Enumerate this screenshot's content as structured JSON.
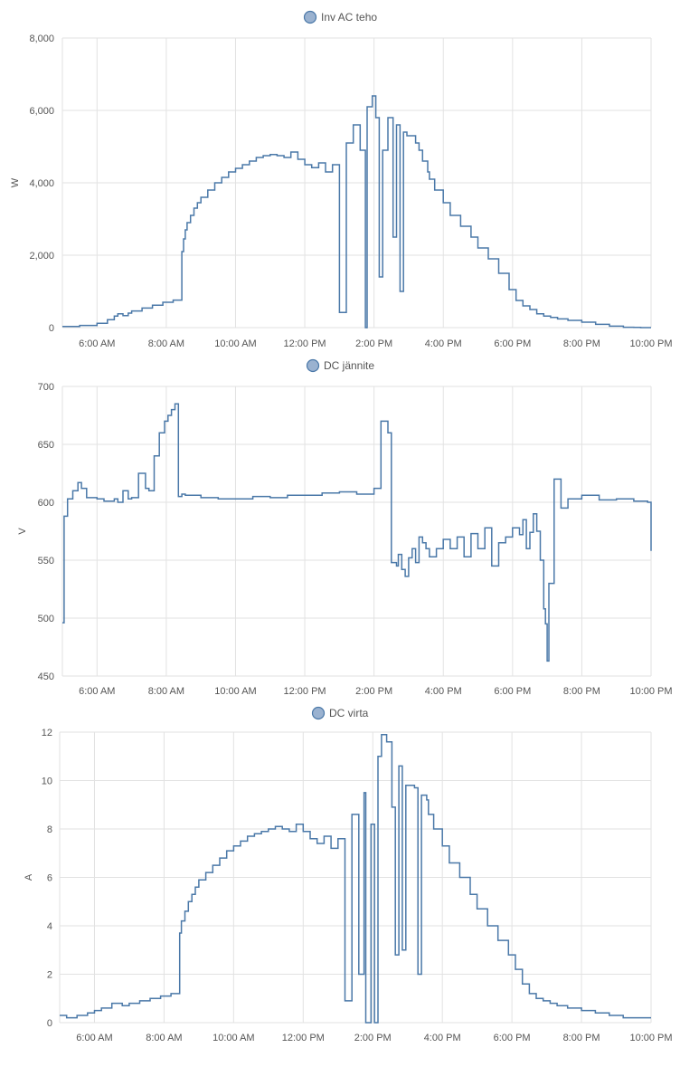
{
  "colors": {
    "series": "#4a78a8",
    "legend_fill": "#9ab2d0",
    "grid": "#e2e2e2",
    "text": "#555555"
  },
  "x_ticks": [
    "6:00 AM",
    "8:00 AM",
    "10:00 AM",
    "12:00 PM",
    "2:00 PM",
    "4:00 PM",
    "6:00 PM",
    "8:00 PM",
    "10:00 PM"
  ],
  "chart_data": [
    {
      "type": "line",
      "step": true,
      "legend": "Inv AC teho",
      "ylabel": "W",
      "xlim": [
        5.0,
        22.0
      ],
      "ylim": [
        0,
        8000
      ],
      "y_ticks": [
        "0",
        "2,000",
        "4,000",
        "6,000",
        "8,000"
      ],
      "y_tick_values": [
        0,
        2000,
        4000,
        6000,
        8000
      ],
      "grid": true,
      "series": [
        {
          "x": [
            5.0,
            5.5,
            6.0,
            6.3,
            6.5,
            6.6,
            6.75,
            6.9,
            7.0,
            7.3,
            7.6,
            7.9,
            8.2,
            8.45,
            8.5,
            8.55,
            8.6,
            8.7,
            8.8,
            8.9,
            9.0,
            9.2,
            9.4,
            9.6,
            9.8,
            10.0,
            10.2,
            10.4,
            10.6,
            10.8,
            11.0,
            11.2,
            11.4,
            11.6,
            11.8,
            12.0,
            12.2,
            12.4,
            12.6,
            12.8,
            13.0,
            13.2,
            13.4,
            13.6,
            13.75,
            13.8,
            13.95,
            14.05,
            14.15,
            14.25,
            14.4,
            14.55,
            14.65,
            14.75,
            14.85,
            14.95,
            15.2,
            15.3,
            15.4,
            15.55,
            15.6,
            15.75,
            16.0,
            16.2,
            16.5,
            16.8,
            17.0,
            17.3,
            17.6,
            17.9,
            18.1,
            18.3,
            18.5,
            18.7,
            18.9,
            19.1,
            19.3,
            19.6,
            20.0,
            20.4,
            20.8,
            21.2,
            21.5,
            21.7,
            22.0
          ],
          "y": [
            30,
            60,
            120,
            220,
            320,
            380,
            330,
            400,
            460,
            540,
            620,
            700,
            760,
            2100,
            2450,
            2700,
            2900,
            3100,
            3300,
            3450,
            3600,
            3800,
            4000,
            4150,
            4300,
            4400,
            4500,
            4600,
            4700,
            4750,
            4780,
            4750,
            4700,
            4850,
            4650,
            4500,
            4420,
            4550,
            4300,
            4500,
            420,
            5100,
            5600,
            4900,
            0,
            6100,
            6400,
            5800,
            1400,
            4900,
            5800,
            2500,
            5600,
            1000,
            5400,
            5300,
            5100,
            4900,
            4600,
            4300,
            4100,
            3800,
            3450,
            3100,
            2800,
            2500,
            2200,
            1900,
            1500,
            1050,
            750,
            600,
            500,
            380,
            320,
            280,
            240,
            200,
            150,
            90,
            40,
            10,
            5,
            0,
            0
          ]
        }
      ]
    },
    {
      "type": "line",
      "step": true,
      "legend": "DC jännite",
      "ylabel": "V",
      "xlim": [
        5.0,
        22.0
      ],
      "ylim": [
        450,
        700
      ],
      "y_ticks": [
        "450",
        "500",
        "550",
        "600",
        "650",
        "700"
      ],
      "y_tick_values": [
        450,
        500,
        550,
        600,
        650,
        700
      ],
      "grid": true,
      "series": [
        {
          "x": [
            5.0,
            5.05,
            5.15,
            5.3,
            5.45,
            5.55,
            5.7,
            6.0,
            6.2,
            6.5,
            6.6,
            6.75,
            6.9,
            7.0,
            7.2,
            7.4,
            7.5,
            7.65,
            7.8,
            7.95,
            8.05,
            8.15,
            8.25,
            8.35,
            8.45,
            8.55,
            9.0,
            9.5,
            10.0,
            10.5,
            11.0,
            11.5,
            12.0,
            12.5,
            13.0,
            13.5,
            14.0,
            14.2,
            14.4,
            14.5,
            14.65,
            14.7,
            14.8,
            14.9,
            15.0,
            15.1,
            15.2,
            15.3,
            15.4,
            15.5,
            15.6,
            15.8,
            16.0,
            16.2,
            16.4,
            16.6,
            16.8,
            17.0,
            17.2,
            17.4,
            17.6,
            17.8,
            18.0,
            18.2,
            18.3,
            18.4,
            18.5,
            18.6,
            18.7,
            18.8,
            18.9,
            18.95,
            19.0,
            19.05,
            19.2,
            19.4,
            19.6,
            20.0,
            20.5,
            21.0,
            21.5,
            21.9,
            22.0
          ],
          "y": [
            496,
            588,
            603,
            610,
            617,
            612,
            604,
            603,
            601,
            603,
            600,
            610,
            603,
            604,
            625,
            612,
            610,
            640,
            660,
            670,
            675,
            680,
            685,
            605,
            607,
            606,
            604,
            603,
            603,
            605,
            604,
            606,
            606,
            608,
            609,
            607,
            612,
            670,
            660,
            548,
            545,
            555,
            542,
            536,
            552,
            560,
            548,
            570,
            565,
            560,
            553,
            560,
            568,
            560,
            570,
            553,
            573,
            560,
            578,
            545,
            565,
            570,
            578,
            572,
            585,
            560,
            574,
            590,
            575,
            550,
            508,
            495,
            463,
            530,
            620,
            595,
            603,
            606,
            602,
            603,
            601,
            600,
            558
          ]
        }
      ]
    },
    {
      "type": "line",
      "step": true,
      "legend": "DC virta",
      "ylabel": "A",
      "xlim": [
        5.0,
        22.0
      ],
      "ylim": [
        0,
        12
      ],
      "y_ticks": [
        "0",
        "2",
        "4",
        "6",
        "8",
        "10",
        "12"
      ],
      "y_tick_values": [
        0,
        2,
        4,
        6,
        8,
        10,
        12
      ],
      "grid": true,
      "series": [
        {
          "x": [
            5.0,
            5.2,
            5.5,
            5.8,
            6.0,
            6.2,
            6.5,
            6.8,
            7.0,
            7.3,
            7.6,
            7.9,
            8.2,
            8.45,
            8.5,
            8.6,
            8.7,
            8.8,
            8.9,
            9.0,
            9.2,
            9.4,
            9.6,
            9.8,
            10.0,
            10.2,
            10.4,
            10.6,
            10.8,
            11.0,
            11.2,
            11.4,
            11.6,
            11.8,
            12.0,
            12.2,
            12.4,
            12.6,
            12.8,
            13.0,
            13.2,
            13.4,
            13.6,
            13.75,
            13.8,
            13.95,
            14.05,
            14.15,
            14.25,
            14.4,
            14.55,
            14.65,
            14.75,
            14.85,
            14.95,
            15.2,
            15.3,
            15.4,
            15.55,
            15.6,
            15.75,
            16.0,
            16.2,
            16.5,
            16.8,
            17.0,
            17.3,
            17.6,
            17.9,
            18.1,
            18.3,
            18.5,
            18.7,
            18.9,
            19.1,
            19.3,
            19.6,
            20.0,
            20.4,
            20.8,
            21.2,
            21.5,
            22.0
          ],
          "y": [
            0.3,
            0.2,
            0.3,
            0.4,
            0.5,
            0.6,
            0.8,
            0.7,
            0.8,
            0.9,
            1.0,
            1.1,
            1.2,
            3.7,
            4.2,
            4.6,
            5.0,
            5.3,
            5.6,
            5.9,
            6.2,
            6.5,
            6.8,
            7.1,
            7.3,
            7.5,
            7.7,
            7.8,
            7.9,
            8.0,
            8.1,
            8.0,
            7.9,
            8.2,
            7.9,
            7.6,
            7.4,
            7.7,
            7.2,
            7.6,
            0.9,
            8.6,
            2.0,
            9.5,
            0.0,
            8.2,
            0.0,
            11.0,
            11.9,
            11.6,
            8.9,
            2.8,
            10.6,
            3.0,
            9.8,
            9.7,
            2.0,
            9.4,
            9.2,
            8.6,
            8.0,
            7.3,
            6.6,
            6.0,
            5.3,
            4.7,
            4.0,
            3.4,
            2.8,
            2.2,
            1.6,
            1.2,
            1.0,
            0.9,
            0.8,
            0.7,
            0.6,
            0.5,
            0.4,
            0.3,
            0.2,
            0.2,
            0.2
          ]
        }
      ]
    }
  ]
}
